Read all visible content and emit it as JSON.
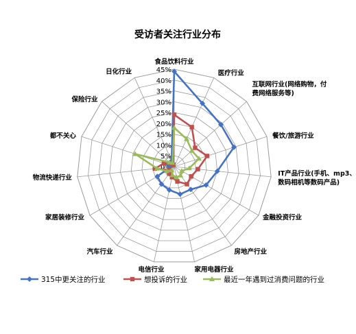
{
  "chart_data": {
    "type": "radar",
    "title": "受访者关注行业分布",
    "categories": [
      "食品饮料行业",
      "医疗行业",
      "互联网行业(网络购物，付费网络服务等)",
      "餐饮/旅游行业",
      "IT产品行业(手机、mp3、数码相机等数码产品)",
      "金融投资行业",
      "房地产行业",
      "家用电器行业",
      "电信行业",
      "汽车行业",
      "家居装修行业",
      "物流快递行业",
      "都不关心",
      "保险行业",
      "日化行业"
    ],
    "category_lines": [
      [
        "食品饮料行业"
      ],
      [
        "医疗行业"
      ],
      [
        "互联网行业(网络购物，付",
        "费网络服务等)"
      ],
      [
        "餐饮/旅游行业"
      ],
      [
        "IT产品行业(手机、mp3、",
        "数码相机等数码产品)"
      ],
      [
        "金融投资行业"
      ],
      [
        "房地产行业"
      ],
      [
        "家用电器行业"
      ],
      [
        "电信行业"
      ],
      [
        "汽车行业"
      ],
      [
        "家居装修行业"
      ],
      [
        "物流快递行业"
      ],
      [
        "都不关心"
      ],
      [
        "保险行业"
      ],
      [
        "日化行业"
      ]
    ],
    "rlim": [
      0,
      45
    ],
    "tick_step": 5,
    "tick_labels": [
      "0%",
      "5%",
      "10%",
      "15%",
      "20%",
      "25%",
      "30%",
      "35%",
      "40%",
      "45%"
    ],
    "series": [
      {
        "name": "315中更关注的行业",
        "color": "#4472C4",
        "marker": "diamond",
        "values": [
          44,
          32,
          29,
          29,
          20,
          17,
          13,
          13,
          11,
          10,
          9,
          2,
          3,
          1,
          3
        ]
      },
      {
        "name": "想投诉的行业",
        "color": "#C0504D",
        "marker": "square",
        "values": [
          24,
          20,
          13,
          16,
          11,
          9,
          10,
          7,
          5,
          4,
          3,
          9,
          5,
          2,
          1
        ]
      },
      {
        "name": "最近一年遇到过消费问题的行业",
        "color": "#9BBB59",
        "marker": "triangle",
        "values": [
          18,
          14,
          11,
          12,
          7,
          4,
          5,
          5,
          4,
          2,
          4,
          8,
          19,
          3,
          2
        ]
      }
    ],
    "legend_position": "bottom",
    "grid": true
  }
}
